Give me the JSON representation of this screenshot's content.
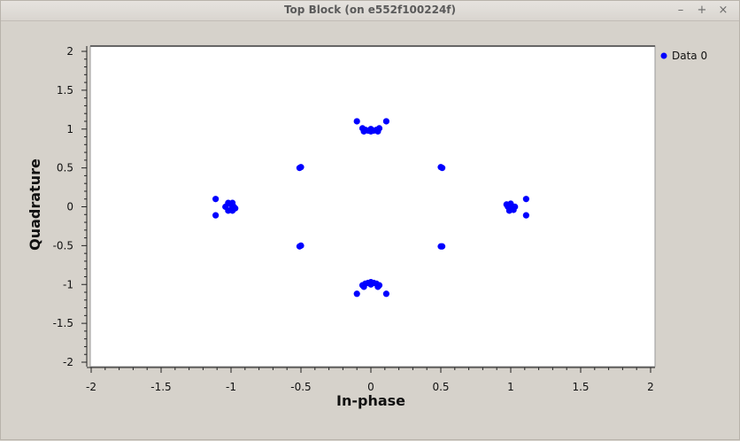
{
  "window": {
    "title": "Top Block (on e552f100224f)",
    "buttons": {
      "minimize": "–",
      "maximize": "+",
      "close": "×"
    }
  },
  "chart_data": {
    "type": "scatter",
    "xlabel": "In-phase",
    "ylabel": "Quadrature",
    "xlim": [
      -2,
      2
    ],
    "ylim": [
      -2,
      2
    ],
    "x_ticks": [
      -2,
      -1.5,
      -1,
      -0.5,
      0,
      0.5,
      1,
      1.5,
      2
    ],
    "y_ticks": [
      -2,
      -1.5,
      -1,
      -0.5,
      0,
      0.5,
      1,
      1.5,
      2
    ],
    "x_tick_labels": [
      "-2",
      "-1.5",
      "-1",
      "-0.5",
      "0",
      "0.5",
      "1",
      "1.5",
      "2"
    ],
    "y_tick_labels": [
      "-2",
      "-1.5",
      "-1",
      "-0.5",
      "0",
      "0.5",
      "1",
      "1.5",
      "2"
    ],
    "grid": false,
    "legend": "top-right outside",
    "series": [
      {
        "name": "Data 0",
        "color": "#0000ff",
        "points": [
          [
            -0.1,
            1.1
          ],
          [
            0.11,
            1.1
          ],
          [
            -0.06,
            1.01
          ],
          [
            -0.04,
            0.99
          ],
          [
            -0.02,
            0.98
          ],
          [
            0.0,
            0.97
          ],
          [
            0.02,
            0.98
          ],
          [
            0.04,
            0.99
          ],
          [
            0.06,
            1.01
          ],
          [
            -0.05,
            0.97
          ],
          [
            0.05,
            0.97
          ],
          [
            0.0,
            1.0
          ],
          [
            -0.1,
            -1.12
          ],
          [
            0.11,
            -1.12
          ],
          [
            -0.06,
            -1.01
          ],
          [
            -0.04,
            -0.99
          ],
          [
            -0.02,
            -0.98
          ],
          [
            0.0,
            -0.97
          ],
          [
            0.02,
            -0.98
          ],
          [
            0.04,
            -0.99
          ],
          [
            0.06,
            -1.01
          ],
          [
            -0.05,
            -1.03
          ],
          [
            0.05,
            -1.03
          ],
          [
            0.0,
            -1.0
          ],
          [
            -1.11,
            0.1
          ],
          [
            -1.11,
            -0.11
          ],
          [
            -1.02,
            0.05
          ],
          [
            -1.0,
            0.03
          ],
          [
            -0.98,
            0.0
          ],
          [
            -0.97,
            -0.02
          ],
          [
            -1.0,
            -0.04
          ],
          [
            -1.02,
            -0.05
          ],
          [
            -1.04,
            0.0
          ],
          [
            -0.99,
            0.05
          ],
          [
            -0.99,
            -0.05
          ],
          [
            1.11,
            0.1
          ],
          [
            1.11,
            -0.11
          ],
          [
            0.97,
            0.03
          ],
          [
            0.98,
            0.0
          ],
          [
            1.0,
            -0.02
          ],
          [
            1.02,
            -0.04
          ],
          [
            0.99,
            -0.05
          ],
          [
            1.0,
            0.04
          ],
          [
            1.03,
            0.0
          ],
          [
            1.0,
            0.0
          ],
          [
            -0.5,
            0.51
          ],
          [
            -0.51,
            0.5
          ],
          [
            0.5,
            0.51
          ],
          [
            0.51,
            0.5
          ],
          [
            -0.51,
            -0.51
          ],
          [
            -0.5,
            -0.5
          ],
          [
            0.5,
            -0.51
          ],
          [
            0.51,
            -0.51
          ]
        ]
      }
    ]
  }
}
